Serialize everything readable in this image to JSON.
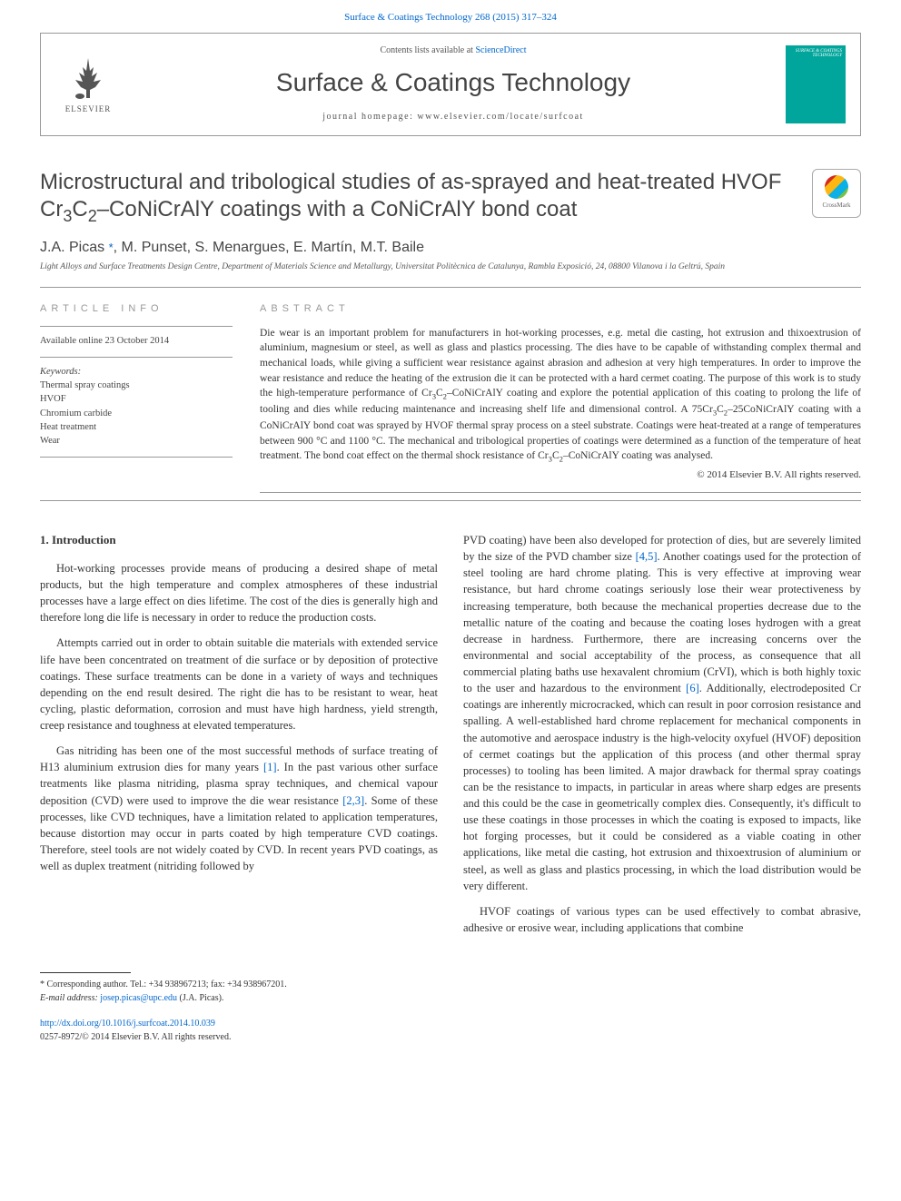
{
  "topbar": {
    "citation": "Surface & Coatings Technology 268 (2015) 317–324"
  },
  "header": {
    "contents_prefix": "Contents lists available at ",
    "contents_link": "ScienceDirect",
    "journal_name": "Surface & Coatings Technology",
    "homepage_prefix": "journal homepage: ",
    "homepage_url": "www.elsevier.com/locate/surfcoat",
    "elsevier": "ELSEVIER",
    "cover_title": "SURFACE & COATINGS TECHNOLOGY"
  },
  "crossmark": {
    "label": "CrossMark"
  },
  "article": {
    "title_html": "Microstructural and tribological studies of as-sprayed and heat-treated HVOF Cr<sub>3</sub>C<sub>2</sub>–CoNiCrAlY coatings with a CoNiCrAlY bond coat",
    "authors": "J.A. Picas *, M. Punset, S. Menargues, E. Martín, M.T. Baile",
    "affiliation": "Light Alloys and Surface Treatments Design Centre, Department of Materials Science and Metallurgy, Universitat Politècnica de Catalunya, Rambla Exposició, 24, 08800 Vilanova i la Geltrú, Spain"
  },
  "info": {
    "label": "ARTICLE INFO",
    "available": "Available online 23 October 2014",
    "keywords_label": "Keywords:",
    "keywords": [
      "Thermal spray coatings",
      "HVOF",
      "Chromium carbide",
      "Heat treatment",
      "Wear"
    ]
  },
  "abstract": {
    "label": "ABSTRACT",
    "text_html": "Die wear is an important problem for manufacturers in hot-working processes, e.g. metal die casting, hot extrusion and thixoextrusion of aluminium, magnesium or steel, as well as glass and plastics processing. The dies have to be capable of withstanding complex thermal and mechanical loads, while giving a sufficient wear resistance against abrasion and adhesion at very high temperatures. In order to improve the wear resistance and reduce the heating of the extrusion die it can be protected with a hard cermet coating. The purpose of this work is to study the high-temperature performance of Cr<sub>3</sub>C<sub>2</sub>–CoNiCrAlY coating and explore the potential application of this coating to prolong the life of tooling and dies while reducing maintenance and increasing shelf life and dimensional control. A 75Cr<sub>3</sub>C<sub>2</sub>–25CoNiCrAlY coating with a CoNiCrAlY bond coat was sprayed by HVOF thermal spray process on a steel substrate. Coatings were heat-treated at a range of temperatures between 900 °C and 1100 °C. The mechanical and tribological properties of coatings were determined as a function of the temperature of heat treatment. The bond coat effect on the thermal shock resistance of Cr<sub>3</sub>C<sub>2</sub>–CoNiCrAlY coating was analysed.",
    "copyright": "© 2014 Elsevier B.V. All rights reserved."
  },
  "body": {
    "introduction_head": "1. Introduction",
    "left": {
      "p1": "Hot-working processes provide means of producing a desired shape of metal products, but the high temperature and complex atmospheres of these industrial processes have a large effect on dies lifetime. The cost of the dies is generally high and therefore long die life is necessary in order to reduce the production costs.",
      "p2": "Attempts carried out in order to obtain suitable die materials with extended service life have been concentrated on treatment of die surface or by deposition of protective coatings. These surface treatments can be done in a variety of ways and techniques depending on the end result desired. The right die has to be resistant to wear, heat cycling, plastic deformation, corrosion and must have high hardness, yield strength, creep resistance and toughness at elevated temperatures.",
      "p3_pre": "Gas nitriding has been one of the most successful methods of surface treating of H13 aluminium extrusion dies for many years ",
      "p3_ref1": "[1]",
      "p3_mid": ". In the past various other surface treatments like plasma nitriding, plasma spray techniques, and chemical vapour deposition (CVD) were used to improve the die wear resistance ",
      "p3_ref2": "[2,3]",
      "p3_post": ". Some of these processes, like CVD techniques, have a limitation related to application temperatures, because distortion may occur in parts coated by high temperature CVD coatings. Therefore, steel tools are not widely coated by CVD. In recent years PVD coatings, as well as duplex treatment (nitriding followed by"
    },
    "right": {
      "p1_pre": "PVD coating) have been also developed for protection of dies, but are severely limited by the size of the PVD chamber size ",
      "p1_ref1": "[4,5]",
      "p1_mid": ". Another coatings used for the protection of steel tooling are hard chrome plating. This is very effective at improving wear resistance, but hard chrome coatings seriously lose their wear protectiveness by increasing temperature, both because the mechanical properties decrease due to the metallic nature of the coating and because the coating loses hydrogen with a great decrease in hardness. Furthermore, there are increasing concerns over the environmental and social acceptability of the process, as consequence that all commercial plating baths use hexavalent chromium (CrVI), which is both highly toxic to the user and hazardous to the environment ",
      "p1_ref2": "[6]",
      "p1_post": ". Additionally, electrodeposited Cr coatings are inherently microcracked, which can result in poor corrosion resistance and spalling. A well-established hard chrome replacement for mechanical components in the automotive and aerospace industry is the high-velocity oxyfuel (HVOF) deposition of cermet coatings but the application of this process (and other thermal spray processes) to tooling has been limited. A major drawback for thermal spray coatings can be the resistance to impacts, in particular in areas where sharp edges are presents and this could be the case in geometrically complex dies. Consequently, it's difficult to use these coatings in those processes in which the coating is exposed to impacts, like hot forging processes, but it could be considered as a viable coating in other applications, like metal die casting, hot extrusion and thixoextrusion of aluminium or steel, as well as glass and plastics processing, in which the load distribution would be very different.",
      "p2": "HVOF coatings of various types can be used effectively to combat abrasive, adhesive or erosive wear, including applications that combine"
    }
  },
  "footer": {
    "corresp": "* Corresponding author. Tel.: +34 938967213; fax: +34 938967201.",
    "email_label": "E-mail address: ",
    "email": "josep.picas@upc.edu",
    "email_suffix": " (J.A. Picas).",
    "doi": "http://dx.doi.org/10.1016/j.surfcoat.2014.10.039",
    "issn_line": "0257-8972/© 2014 Elsevier B.V. All rights reserved."
  }
}
